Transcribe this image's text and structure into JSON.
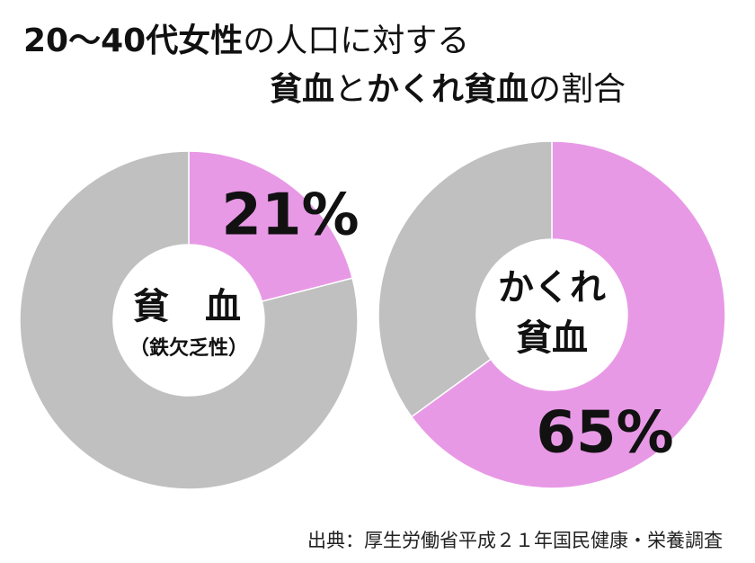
{
  "title": {
    "line1": [
      {
        "text": "20～40代女性",
        "bold": true
      },
      {
        "text": "の人口に対する",
        "bold": false
      }
    ],
    "line2": [
      {
        "text": "貧血",
        "bold": true
      },
      {
        "text": "と",
        "bold": false
      },
      {
        "text": "かくれ貧血",
        "bold": true
      },
      {
        "text": "の割合",
        "bold": false
      }
    ]
  },
  "source": "出典：厚生労働省平成２１年国民健康・栄養調査",
  "colors": {
    "highlight": "#e899e6",
    "rest": "#c0c0c0",
    "text": "#111111"
  },
  "chart_data": [
    {
      "type": "pie",
      "slices": [
        {
          "label": "貧血",
          "value": 21
        },
        {
          "label": "",
          "value": 79
        }
      ],
      "value_label": "21%",
      "center_label_main": "貧　血",
      "center_label_sub": "（鉄欠乏性）"
    },
    {
      "type": "pie",
      "slices": [
        {
          "label": "かくれ貧血",
          "value": 65
        },
        {
          "label": "",
          "value": 35
        }
      ],
      "value_label": "65%",
      "center_label_line1": "かくれ",
      "center_label_line2": "貧血"
    }
  ]
}
